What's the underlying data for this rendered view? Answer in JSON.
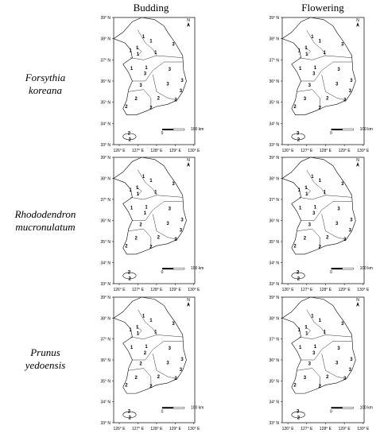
{
  "columns": [
    "Budding",
    "Flowering"
  ],
  "rows": [
    {
      "label_lines": [
        "Forsythia",
        "koreana"
      ],
      "maps": [
        {
          "codes": [
            1,
            1,
            1,
            1,
            3,
            1,
            1,
            3,
            3,
            2,
            2,
            3,
            3,
            3,
            3,
            2,
            2,
            2,
            2,
            2,
            1,
            1
          ]
        },
        {
          "codes": [
            1,
            1,
            1,
            1,
            3,
            1,
            1,
            3,
            3,
            3,
            2,
            3,
            3,
            3,
            3,
            2,
            2,
            2,
            3,
            2,
            1,
            1
          ]
        }
      ]
    },
    {
      "label_lines": [
        "Rhododendron",
        "mucronulatum"
      ],
      "maps": [
        {
          "codes": [
            1,
            1,
            1,
            1,
            3,
            1,
            1,
            1,
            2,
            2,
            2,
            3,
            3,
            3,
            3,
            2,
            2,
            2,
            2,
            2,
            1,
            1
          ]
        },
        {
          "codes": [
            1,
            1,
            1,
            1,
            3,
            1,
            1,
            3,
            3,
            2,
            2,
            3,
            3,
            3,
            3,
            2,
            2,
            2,
            2,
            2,
            1,
            1
          ]
        }
      ]
    },
    {
      "label_lines": [
        "Prunus",
        "yedoensis"
      ],
      "maps": [
        {
          "codes": [
            1,
            1,
            1,
            1,
            3,
            1,
            1,
            2,
            2,
            2,
            2,
            3,
            3,
            3,
            3,
            2,
            2,
            2,
            2,
            2,
            1,
            1
          ]
        },
        {
          "codes": [
            1,
            1,
            1,
            1,
            3,
            1,
            1,
            3,
            3,
            3,
            2,
            3,
            3,
            3,
            3,
            3,
            2,
            2,
            3,
            2,
            1,
            1
          ]
        }
      ]
    }
  ],
  "lat_ticks": [
    {
      "value": 39,
      "label": "39° N"
    },
    {
      "value": 38,
      "label": "38° N"
    },
    {
      "value": 37,
      "label": "37° N"
    },
    {
      "value": 36,
      "label": "36° N"
    },
    {
      "value": 35,
      "label": "35° N"
    },
    {
      "value": 34,
      "label": "34° N"
    },
    {
      "value": 33,
      "label": "33° N"
    }
  ],
  "lon_ticks": [
    {
      "value": 126,
      "label": "126° E"
    },
    {
      "value": 127,
      "label": "127° E"
    },
    {
      "value": 128,
      "label": "128° E"
    },
    {
      "value": 129,
      "label": "129° E"
    },
    {
      "value": 130,
      "label": "130° E"
    }
  ],
  "scale_labels": [
    "0",
    "100 km"
  ],
  "north": "N"
}
